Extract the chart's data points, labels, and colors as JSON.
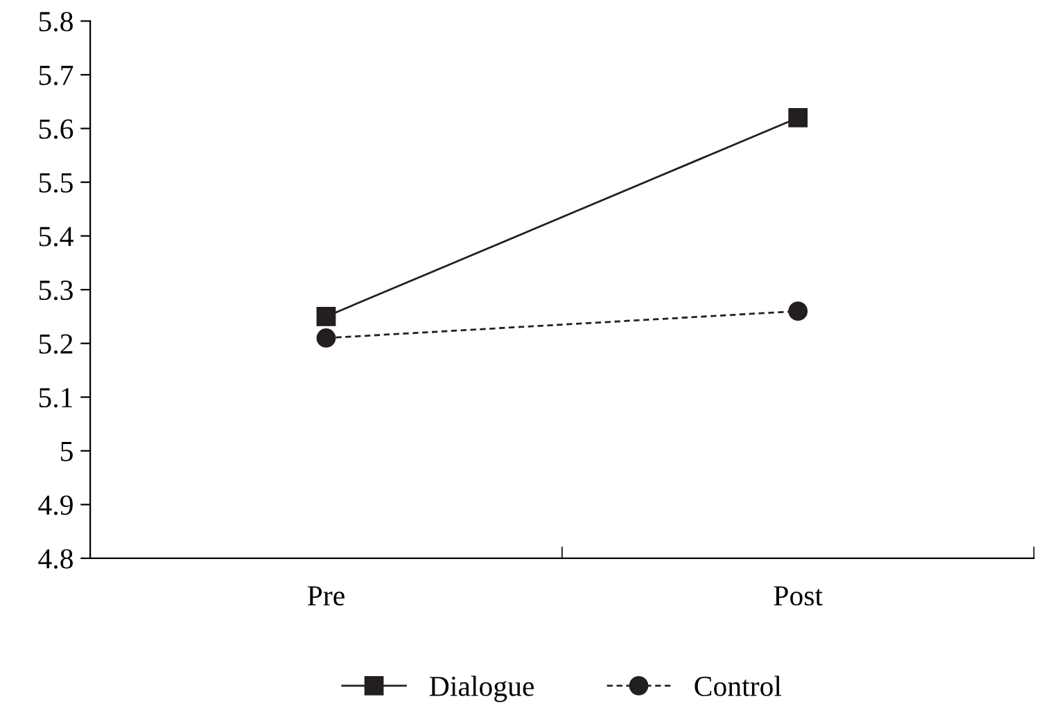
{
  "chart_data": {
    "type": "line",
    "categories": [
      "Pre",
      "Post"
    ],
    "series": [
      {
        "name": "Dialogue",
        "color": "#231f20",
        "values": [
          5.25,
          5.62
        ],
        "marker": "square",
        "line_style": "solid"
      },
      {
        "name": "Control",
        "color": "#231f20",
        "values": [
          5.21,
          5.26
        ],
        "marker": "circle",
        "line_style": "dashed"
      }
    ],
    "ylim": [
      4.8,
      5.8
    ],
    "yticks": [
      4.8,
      4.9,
      5,
      5.1,
      5.2,
      5.3,
      5.4,
      5.5,
      5.6,
      5.7,
      5.8
    ],
    "grid": false,
    "legend": "bottom"
  }
}
